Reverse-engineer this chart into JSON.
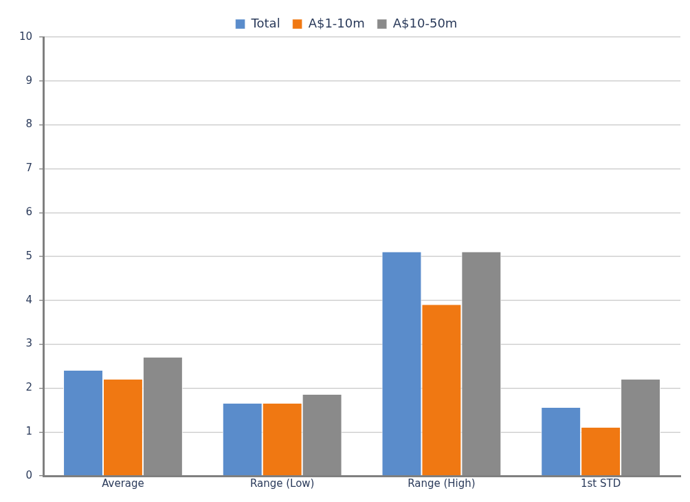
{
  "chart_data": {
    "type": "bar",
    "categories": [
      "Average",
      "Range (Low)",
      "Range (High)",
      "1st STD"
    ],
    "series": [
      {
        "name": "Total",
        "color": "#5a8ccb",
        "values": [
          2.4,
          1.65,
          5.1,
          1.55
        ]
      },
      {
        "name": "A$1-10m",
        "color": "#f07812",
        "values": [
          2.2,
          1.65,
          3.9,
          1.1
        ]
      },
      {
        "name": "A$10-50m",
        "color": "#8a8a8a",
        "values": [
          2.7,
          1.85,
          5.1,
          2.2
        ]
      }
    ],
    "ylim": [
      0,
      10
    ],
    "yticks": [
      0,
      1,
      2,
      3,
      4,
      5,
      6,
      7,
      8,
      9,
      10
    ],
    "grid": "y",
    "legend": "top"
  }
}
